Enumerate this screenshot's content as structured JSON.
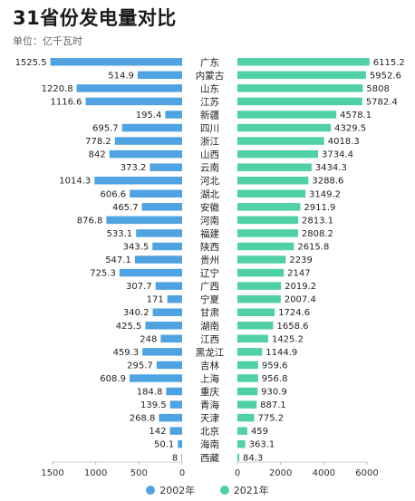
{
  "chart_data": {
    "type": "bar",
    "orientation": "horizontal-butterfly",
    "title": "31省份发电量对比",
    "unit_label": "单位：亿千瓦时",
    "categories": [
      "广东",
      "内蒙古",
      "山东",
      "江苏",
      "新疆",
      "四川",
      "浙江",
      "山西",
      "云南",
      "河北",
      "湖北",
      "安徽",
      "河南",
      "福建",
      "陕西",
      "贵州",
      "辽宁",
      "广西",
      "宁夏",
      "甘肃",
      "湖南",
      "江西",
      "黑龙江",
      "吉林",
      "上海",
      "重庆",
      "青海",
      "天津",
      "北京",
      "海南",
      "西藏"
    ],
    "series": [
      {
        "name": "2002年",
        "color": "#4fa3e0",
        "values": [
          1525.5,
          514.9,
          1220.8,
          1116.6,
          195.4,
          695.7,
          778.2,
          842,
          373.2,
          1014.3,
          606.6,
          465.7,
          876.8,
          533.1,
          343.5,
          547.1,
          725.3,
          307.7,
          171,
          340.2,
          425.5,
          248,
          459.3,
          295.7,
          608.9,
          184.8,
          139.5,
          268.8,
          142,
          50.1,
          8
        ]
      },
      {
        "name": "2021年",
        "color": "#4fd1a5",
        "values": [
          6115.2,
          5952.6,
          5808,
          5782.4,
          4578.1,
          4329.5,
          4018.3,
          3734.4,
          3434.3,
          3288.6,
          3149.2,
          2911.9,
          2813.1,
          2808.2,
          2615.8,
          2239,
          2147,
          2019.2,
          2007.4,
          1724.6,
          1658.6,
          1425.2,
          1144.9,
          959.6,
          956.8,
          930.9,
          887.1,
          775.2,
          459,
          363.1,
          84.3
        ]
      }
    ],
    "left_axis": {
      "ticks": [
        1500,
        1000,
        500,
        0
      ],
      "max": 1500
    },
    "right_axis": {
      "ticks": [
        0,
        2000,
        4000,
        6000
      ],
      "max": 6000
    },
    "grid": false,
    "legend_position": "bottom-center"
  }
}
